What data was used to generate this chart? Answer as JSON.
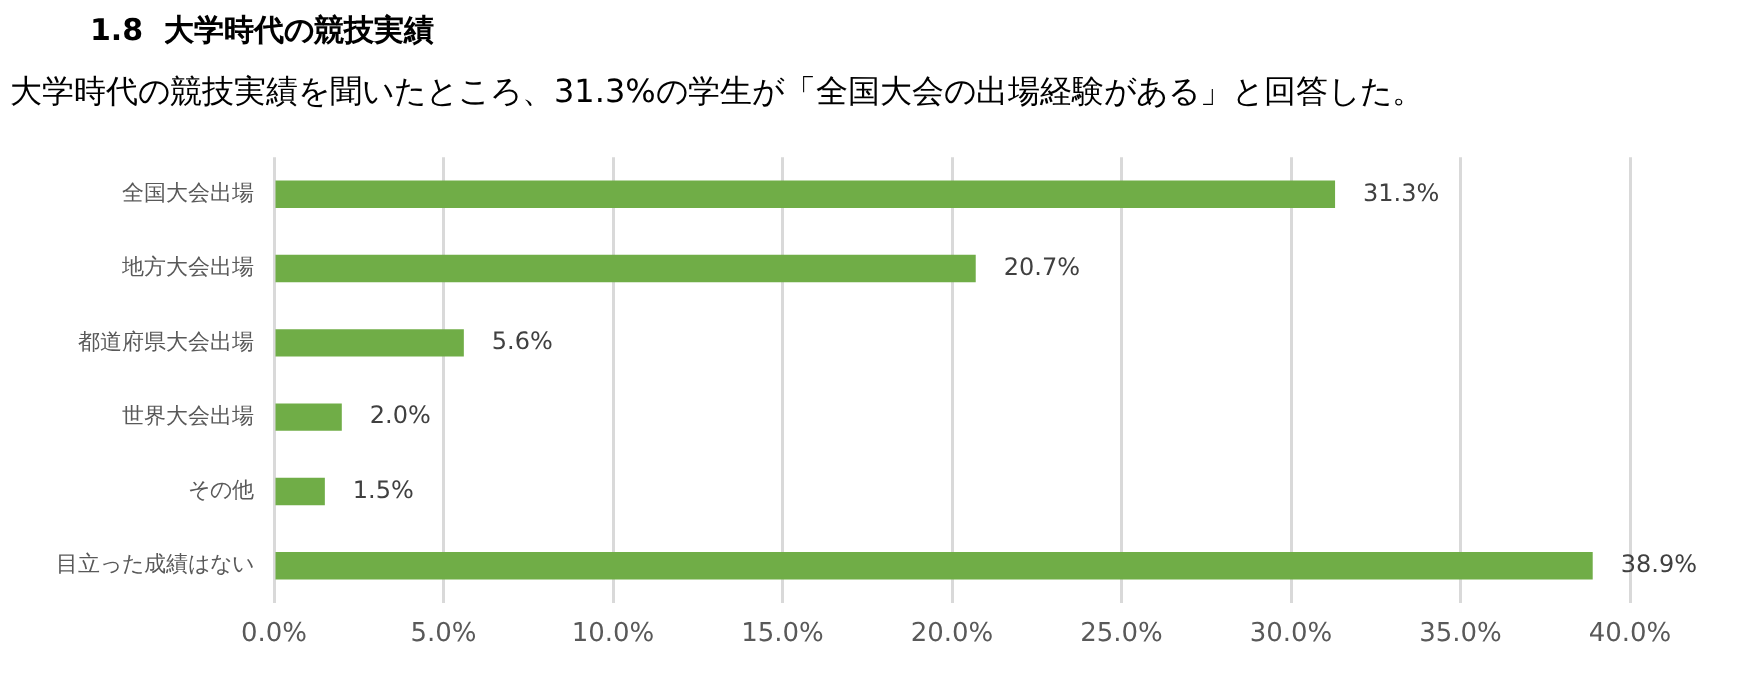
{
  "chart_data": {
    "type": "bar",
    "orientation": "horizontal",
    "title": "1.8  大学時代の競技実績",
    "subtitle": "大学時代の競技実績を聞いたところ、31.3%の学生が「全国大会の出場経験がある」と回答した。",
    "categories": [
      "全国大会出場",
      "地方大会出場",
      "都道府県大会出場",
      "世界大会出場",
      "その他",
      "目立った成績はない"
    ],
    "values": [
      31.3,
      20.7,
      5.6,
      2.0,
      1.5,
      38.9
    ],
    "value_labels": [
      "31.3%",
      "20.7%",
      "5.6%",
      "2.0%",
      "1.5%",
      "38.9%"
    ],
    "color": "#70ad47",
    "xlim": [
      0,
      40
    ],
    "xticks": [
      {
        "value": 0,
        "label": "0.0%"
      },
      {
        "value": 5,
        "label": "5.0%"
      },
      {
        "value": 10,
        "label": "10.0%"
      },
      {
        "value": 15,
        "label": "15.0%"
      },
      {
        "value": 20,
        "label": "20.0%"
      },
      {
        "value": 25,
        "label": "25.0%"
      },
      {
        "value": 30,
        "label": "30.0%"
      },
      {
        "value": 35,
        "label": "35.0%"
      },
      {
        "value": 40,
        "label": "40.0%"
      }
    ],
    "grid": "x",
    "legend": false
  }
}
